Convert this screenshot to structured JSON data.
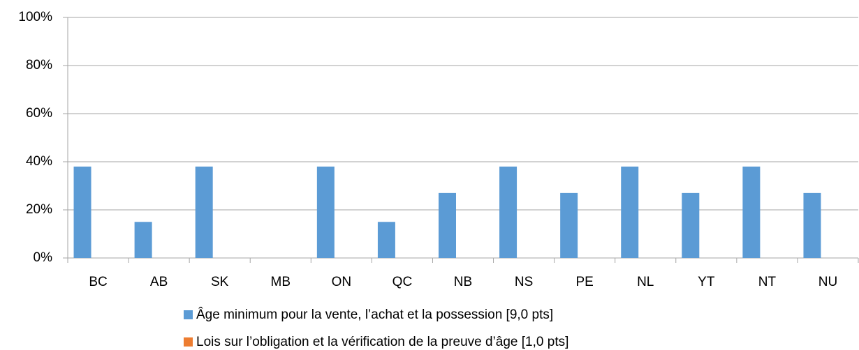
{
  "chart_data": {
    "type": "bar",
    "categories": [
      "BC",
      "AB",
      "SK",
      "MB",
      "ON",
      "QC",
      "NB",
      "NS",
      "PE",
      "NL",
      "YT",
      "NT",
      "NU"
    ],
    "series": [
      {
        "name": "Âge minimum pour la vente, l’achat et la possession [9,0 pts]",
        "color": "#5b9bd5",
        "values": [
          38,
          15,
          38,
          0,
          38,
          15,
          27,
          38,
          27,
          38,
          27,
          38,
          27
        ]
      },
      {
        "name": "Lois sur l’obligation et la vérification de la preuve d’âge [1,0 pts]",
        "color": "#ed7d31",
        "values": [
          0,
          0,
          0,
          0,
          0,
          0,
          0,
          0,
          0,
          0,
          0,
          0,
          0
        ]
      }
    ],
    "ylim": [
      0,
      100
    ],
    "yticks": [
      {
        "value": 0,
        "label": "0%"
      },
      {
        "value": 20,
        "label": "20%"
      },
      {
        "value": 40,
        "label": "40%"
      },
      {
        "value": 60,
        "label": "60%"
      },
      {
        "value": 80,
        "label": "80%"
      },
      {
        "value": 100,
        "label": "100%"
      }
    ],
    "grid": true,
    "legend": "bottom"
  }
}
